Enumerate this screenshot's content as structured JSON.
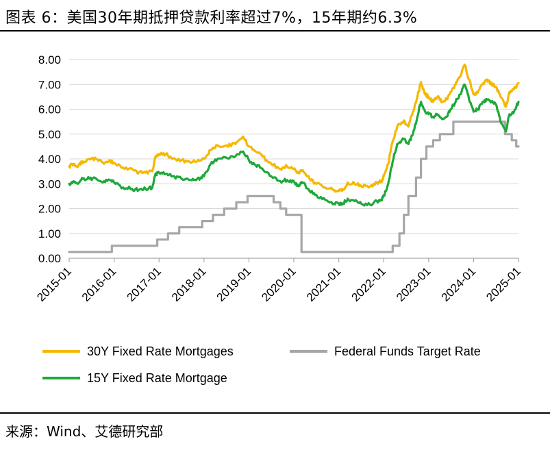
{
  "header": {
    "title": "图表 6：美国30年期抵押贷款利率超过7%，15年期约6.3%"
  },
  "footer": {
    "source": "来源：Wind、艾德研究部"
  },
  "chart_data": {
    "type": "line",
    "title": "图表 6：美国30年期抵押贷款利率超过7%，15年期约6.3%",
    "xlabel": "",
    "ylabel": "",
    "ylim": [
      0,
      8
    ],
    "yticks": [
      0,
      1,
      2,
      3,
      4,
      5,
      6,
      7,
      8
    ],
    "ytick_labels": [
      "0.00",
      "1.00",
      "2.00",
      "3.00",
      "4.00",
      "5.00",
      "6.00",
      "7.00",
      "8.00"
    ],
    "xlim": [
      2015.0,
      2025.0
    ],
    "xtick_labels": [
      "2015-01",
      "2016-01",
      "2017-01",
      "2018-01",
      "2019-01",
      "2020-01",
      "2021-01",
      "2022-01",
      "2023-01",
      "2024-01",
      "2025-01"
    ],
    "grid": "horizontal",
    "legend_position": "bottom",
    "series": [
      {
        "name": "30Y Fixed Rate Mortgages",
        "color": "#F5B800",
        "style": "jagged",
        "x": [
          2015.0,
          2015.1,
          2015.2,
          2015.3,
          2015.45,
          2015.6,
          2015.75,
          2015.9,
          2016.0,
          2016.2,
          2016.4,
          2016.55,
          2016.7,
          2016.85,
          2016.92,
          2017.0,
          2017.15,
          2017.3,
          2017.5,
          2017.7,
          2017.85,
          2018.0,
          2018.15,
          2018.3,
          2018.5,
          2018.7,
          2018.87,
          2019.0,
          2019.15,
          2019.3,
          2019.5,
          2019.7,
          2019.85,
          2020.0,
          2020.1,
          2020.2,
          2020.35,
          2020.5,
          2020.7,
          2020.9,
          2021.0,
          2021.1,
          2021.2,
          2021.35,
          2021.5,
          2021.7,
          2021.85,
          2021.95,
          2022.0,
          2022.1,
          2022.2,
          2022.3,
          2022.45,
          2022.55,
          2022.65,
          2022.75,
          2022.83,
          2022.92,
          2023.0,
          2023.1,
          2023.2,
          2023.3,
          2023.4,
          2023.5,
          2023.6,
          2023.7,
          2023.8,
          2023.9,
          2024.0,
          2024.1,
          2024.2,
          2024.3,
          2024.4,
          2024.5,
          2024.6,
          2024.72,
          2024.8,
          2024.9,
          2025.0
        ],
        "values": [
          3.7,
          3.8,
          3.7,
          3.9,
          4.0,
          4.0,
          3.85,
          3.95,
          3.85,
          3.65,
          3.6,
          3.45,
          3.45,
          3.5,
          4.1,
          4.2,
          4.2,
          4.0,
          3.95,
          3.85,
          3.9,
          4.0,
          4.35,
          4.55,
          4.55,
          4.6,
          4.9,
          4.5,
          4.3,
          4.1,
          3.8,
          3.6,
          3.7,
          3.6,
          3.45,
          3.55,
          3.2,
          3.0,
          2.85,
          2.75,
          2.7,
          2.75,
          3.05,
          3.0,
          2.9,
          2.9,
          3.05,
          3.1,
          3.3,
          3.8,
          4.7,
          5.3,
          5.55,
          5.3,
          5.9,
          6.5,
          7.1,
          6.6,
          6.5,
          6.3,
          6.5,
          6.3,
          6.4,
          6.7,
          7.0,
          7.3,
          7.8,
          7.2,
          6.6,
          6.7,
          7.0,
          7.2,
          7.0,
          6.9,
          6.5,
          6.1,
          6.7,
          6.8,
          7.05
        ]
      },
      {
        "name": "15Y Fixed Rate Mortgage",
        "color": "#1FA83A",
        "style": "jagged",
        "x": [
          2015.0,
          2015.1,
          2015.2,
          2015.3,
          2015.45,
          2015.6,
          2015.75,
          2015.9,
          2016.0,
          2016.2,
          2016.4,
          2016.55,
          2016.7,
          2016.85,
          2016.92,
          2017.0,
          2017.15,
          2017.3,
          2017.5,
          2017.7,
          2017.85,
          2018.0,
          2018.15,
          2018.3,
          2018.5,
          2018.7,
          2018.87,
          2019.0,
          2019.15,
          2019.3,
          2019.5,
          2019.7,
          2019.85,
          2020.0,
          2020.1,
          2020.2,
          2020.35,
          2020.5,
          2020.7,
          2020.9,
          2021.0,
          2021.1,
          2021.2,
          2021.35,
          2021.5,
          2021.7,
          2021.85,
          2021.95,
          2022.0,
          2022.1,
          2022.2,
          2022.3,
          2022.45,
          2022.55,
          2022.65,
          2022.75,
          2022.83,
          2022.92,
          2023.0,
          2023.1,
          2023.2,
          2023.3,
          2023.4,
          2023.5,
          2023.6,
          2023.7,
          2023.8,
          2023.9,
          2024.0,
          2024.1,
          2024.2,
          2024.3,
          2024.4,
          2024.5,
          2024.6,
          2024.72,
          2024.8,
          2024.9,
          2025.0
        ],
        "values": [
          3.0,
          3.1,
          3.0,
          3.2,
          3.2,
          3.2,
          3.05,
          3.15,
          3.05,
          2.85,
          2.8,
          2.75,
          2.8,
          2.85,
          3.4,
          3.45,
          3.4,
          3.3,
          3.2,
          3.15,
          3.2,
          3.3,
          3.8,
          4.0,
          4.05,
          4.1,
          4.3,
          3.95,
          3.75,
          3.6,
          3.3,
          3.1,
          3.15,
          3.1,
          2.9,
          3.05,
          2.7,
          2.55,
          2.35,
          2.2,
          2.2,
          2.2,
          2.4,
          2.3,
          2.2,
          2.15,
          2.3,
          2.35,
          2.5,
          3.0,
          3.9,
          4.6,
          4.8,
          4.6,
          5.0,
          5.7,
          6.3,
          5.9,
          5.8,
          5.7,
          5.8,
          5.6,
          5.7,
          6.0,
          6.3,
          6.6,
          7.0,
          6.4,
          5.9,
          6.0,
          6.3,
          6.4,
          6.3,
          6.2,
          5.5,
          5.1,
          5.8,
          5.9,
          6.3
        ]
      },
      {
        "name": "Federal Funds Target Rate",
        "color": "#A6A6A6",
        "style": "step",
        "x": [
          2015.0,
          2015.95,
          2016.96,
          2017.2,
          2017.45,
          2017.96,
          2018.2,
          2018.45,
          2018.72,
          2018.97,
          2019.55,
          2019.7,
          2019.83,
          2020.17,
          2020.2,
          2022.2,
          2022.35,
          2022.45,
          2022.55,
          2022.72,
          2022.83,
          2022.95,
          2023.1,
          2023.25,
          2023.55,
          2024.7,
          2024.85,
          2024.95,
          2025.0
        ],
        "values": [
          0.25,
          0.5,
          0.75,
          1.0,
          1.25,
          1.5,
          1.75,
          2.0,
          2.25,
          2.5,
          2.25,
          2.0,
          1.75,
          0.25,
          0.25,
          0.5,
          1.0,
          1.75,
          2.5,
          3.25,
          4.0,
          4.5,
          4.75,
          5.0,
          5.5,
          5.0,
          4.75,
          4.5,
          4.5
        ]
      }
    ],
    "legend_rows": [
      [
        "30Y Fixed Rate Mortgages",
        "Federal Funds Target Rate"
      ],
      [
        "15Y Fixed Rate Mortgage"
      ]
    ]
  }
}
